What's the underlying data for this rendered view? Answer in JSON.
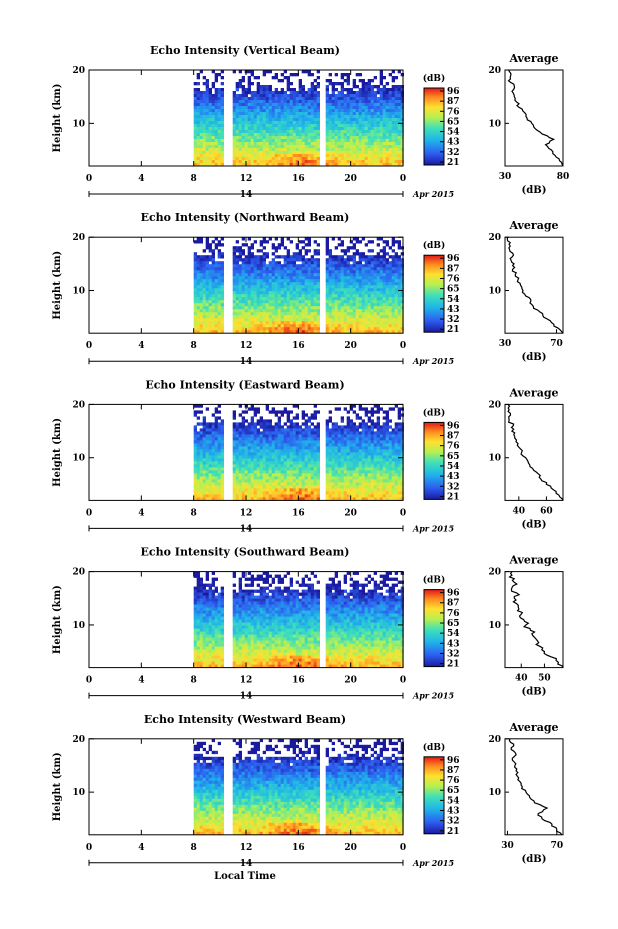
{
  "figure": {
    "xlabel": "Local Time",
    "date_label": "Apr 2015",
    "date_tick": "14"
  },
  "chart_data": [
    {
      "type": "heatmap",
      "title": "Echo Intensity (Vertical Beam)",
      "ylabel": "Height (km)",
      "x_ticks": [
        "0",
        "4",
        "8",
        "12",
        "16",
        "20",
        "0"
      ],
      "xlim": [
        0,
        24
      ],
      "y_ticks": [
        "20",
        "10"
      ],
      "ylim": [
        2,
        20
      ],
      "data_start_hour": 8,
      "gaps_hour": [
        10.5,
        17.7
      ],
      "colorbar": {
        "label": "(dB)",
        "ticks": [
          "96",
          "87",
          "76",
          "65",
          "54",
          "43",
          "32",
          "21"
        ]
      },
      "profile": {
        "title": "Average",
        "xlabel": "(dB)",
        "x_ticks": [
          "30",
          "80"
        ],
        "xlim": [
          30,
          80
        ],
        "y_ticks": [
          "20",
          "10"
        ],
        "heights_km": [
          2,
          3,
          4,
          5,
          6,
          7,
          8,
          9,
          10,
          11,
          12,
          13,
          14,
          15,
          16,
          17,
          18,
          19,
          20
        ],
        "values_db": [
          80,
          77,
          73,
          70,
          65,
          72,
          62,
          56,
          53,
          49,
          47,
          42,
          40,
          38,
          36,
          38,
          33,
          35,
          33
        ]
      }
    },
    {
      "type": "heatmap",
      "title": "Echo Intensity (Northward Beam)",
      "ylabel": "Height (km)",
      "x_ticks": [
        "0",
        "4",
        "8",
        "12",
        "16",
        "20",
        "0"
      ],
      "xlim": [
        0,
        24
      ],
      "y_ticks": [
        "20",
        "10"
      ],
      "ylim": [
        2,
        20
      ],
      "data_start_hour": 8,
      "gaps_hour": [
        10.5,
        17.7
      ],
      "colorbar": {
        "label": "(dB)",
        "ticks": [
          "96",
          "87",
          "76",
          "65",
          "54",
          "43",
          "32",
          "21"
        ]
      },
      "profile": {
        "title": "Average",
        "xlabel": "(dB)",
        "x_ticks": [
          "30",
          "70"
        ],
        "xlim": [
          30,
          75
        ],
        "y_ticks": [
          "20",
          "10"
        ],
        "heights_km": [
          2,
          3,
          4,
          5,
          6,
          7,
          8,
          9,
          10,
          11,
          12,
          13,
          14,
          15,
          16,
          17,
          18,
          19,
          20
        ],
        "values_db": [
          75,
          71,
          66,
          60,
          57,
          52,
          50,
          46,
          44,
          42,
          40,
          38,
          36,
          37,
          34,
          36,
          33,
          34,
          32
        ]
      }
    },
    {
      "type": "heatmap",
      "title": "Echo Intensity (Eastward Beam)",
      "ylabel": "Height (km)",
      "x_ticks": [
        "0",
        "4",
        "8",
        "12",
        "16",
        "20",
        "0"
      ],
      "xlim": [
        0,
        24
      ],
      "y_ticks": [
        "20",
        "10"
      ],
      "ylim": [
        2,
        20
      ],
      "data_start_hour": 8,
      "gaps_hour": [
        10.5,
        17.7
      ],
      "colorbar": {
        "label": "(dB)",
        "ticks": [
          "96",
          "87",
          "76",
          "65",
          "54",
          "43",
          "32",
          "21"
        ]
      },
      "profile": {
        "title": "Average",
        "xlabel": "(dB)",
        "x_ticks": [
          "40",
          "60"
        ],
        "xlim": [
          30,
          72
        ],
        "y_ticks": [
          "20",
          "10"
        ],
        "heights_km": [
          2,
          3,
          4,
          5,
          6,
          7,
          8,
          9,
          10,
          11,
          12,
          13,
          14,
          15,
          16,
          17,
          18,
          19,
          20
        ],
        "values_db": [
          72,
          69,
          65,
          60,
          56,
          54,
          50,
          47,
          45,
          42,
          40,
          38,
          37,
          35,
          36,
          33,
          34,
          33,
          32
        ]
      }
    },
    {
      "type": "heatmap",
      "title": "Echo Intensity (Southward Beam)",
      "ylabel": "Height (km)",
      "x_ticks": [
        "0",
        "4",
        "8",
        "12",
        "16",
        "20",
        "0"
      ],
      "xlim": [
        0,
        24
      ],
      "y_ticks": [
        "20",
        "10"
      ],
      "ylim": [
        2,
        20
      ],
      "data_start_hour": 8,
      "gaps_hour": [
        10.5,
        17.7
      ],
      "colorbar": {
        "label": "(dB)",
        "ticks": [
          "96",
          "87",
          "76",
          "65",
          "54",
          "43",
          "32",
          "21"
        ]
      },
      "profile": {
        "title": "Average",
        "xlabel": "(dB)",
        "x_ticks": [
          "40",
          "50"
        ],
        "xlim": [
          33,
          58
        ],
        "y_ticks": [
          "20",
          "10"
        ],
        "heights_km": [
          2,
          3,
          4,
          5,
          6,
          7,
          8,
          9,
          10,
          11,
          12,
          13,
          14,
          15,
          16,
          17,
          18,
          19,
          20
        ],
        "values_db": [
          58,
          56,
          53,
          50,
          48,
          47,
          45,
          44,
          42,
          41,
          40,
          39,
          38,
          37,
          38,
          36,
          37,
          35,
          36
        ]
      }
    },
    {
      "type": "heatmap",
      "title": "Echo Intensity (Westward Beam)",
      "ylabel": "Height (km)",
      "x_ticks": [
        "0",
        "4",
        "8",
        "12",
        "16",
        "20",
        "0"
      ],
      "xlim": [
        0,
        24
      ],
      "y_ticks": [
        "20",
        "10"
      ],
      "ylim": [
        2,
        20
      ],
      "data_start_hour": 8,
      "gaps_hour": [
        10.5,
        17.7
      ],
      "colorbar": {
        "label": "(dB)",
        "ticks": [
          "96",
          "87",
          "76",
          "65",
          "54",
          "43",
          "32",
          "21"
        ]
      },
      "profile": {
        "title": "Average",
        "xlabel": "(dB)",
        "x_ticks": [
          "30",
          "70"
        ],
        "xlim": [
          28,
          75
        ],
        "y_ticks": [
          "20",
          "10"
        ],
        "heights_km": [
          2,
          3,
          4,
          5,
          6,
          7,
          8,
          9,
          10,
          11,
          12,
          13,
          14,
          15,
          16,
          17,
          18,
          19,
          20
        ],
        "values_db": [
          74,
          70,
          66,
          58,
          55,
          62,
          52,
          48,
          45,
          42,
          40,
          38,
          37,
          36,
          34,
          37,
          33,
          35,
          32
        ]
      }
    }
  ]
}
